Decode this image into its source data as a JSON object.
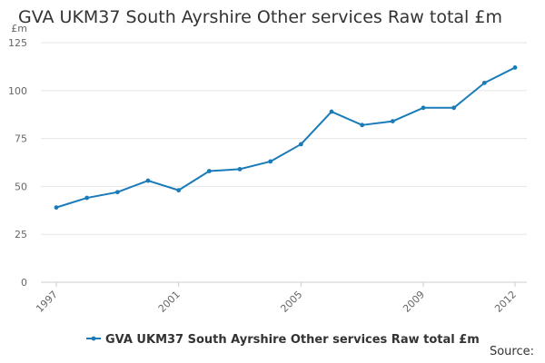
{
  "title": "GVA UKM37 South Ayrshire Other services Raw total £m",
  "source_label": "Source:",
  "chart_data": {
    "type": "line",
    "title": "GVA UKM37 South Ayrshire Other services Raw total £m",
    "y_unit": "£m",
    "xlabel": "",
    "ylabel": "",
    "x": [
      1997,
      1998,
      1999,
      2000,
      2001,
      2002,
      2003,
      2004,
      2005,
      2006,
      2007,
      2008,
      2009,
      2010,
      2011,
      2012
    ],
    "x_ticks": [
      "1997",
      "2001",
      "2005",
      "2009",
      "2012"
    ],
    "x_tick_values": [
      1997,
      2001,
      2005,
      2009,
      2012
    ],
    "y_ticks": [
      "0",
      "25",
      "50",
      "75",
      "100",
      "125"
    ],
    "y_tick_values": [
      0,
      25,
      50,
      75,
      100,
      125
    ],
    "ylim": [
      0,
      125
    ],
    "xlim": [
      1997,
      2012
    ],
    "grid": true,
    "legend_position": "bottom",
    "series": [
      {
        "name": "GVA UKM37 South Ayrshire Other services Raw total £m",
        "color": "#1a7bb9",
        "values": [
          39,
          44,
          47,
          53,
          48,
          58,
          59,
          63,
          72,
          89,
          82,
          84,
          91,
          91,
          104,
          112
        ]
      }
    ]
  }
}
